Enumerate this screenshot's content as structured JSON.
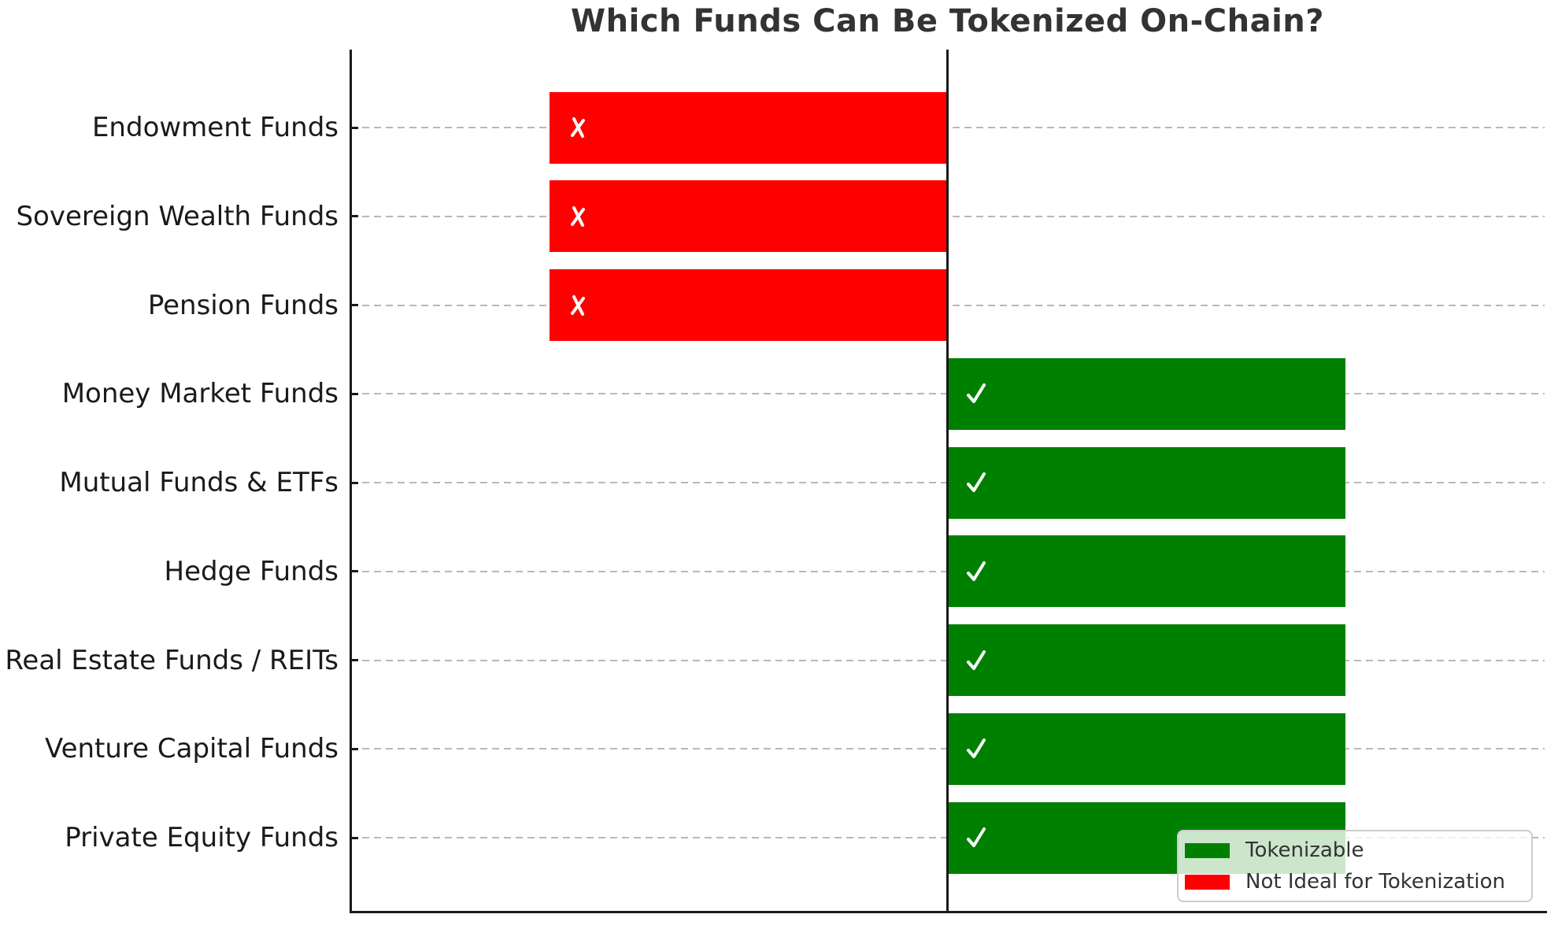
{
  "title": "Which Funds Can Be Tokenized On-Chain?",
  "chart_data": {
    "type": "bar",
    "orientation": "horizontal",
    "diverging": true,
    "title": "Which Funds Can Be Tokenized On-Chain?",
    "xlabel": "",
    "ylabel": "",
    "xlim": [
      -1.5,
      1.5
    ],
    "grid": "horizontal dashed gridline at each category",
    "legend_position": "lower right",
    "center_line_x": 0,
    "categories": [
      "Endowment Funds",
      "Sovereign Wealth Funds",
      "Pension Funds",
      "Money Market Funds",
      "Mutual Funds & ETFs",
      "Hedge Funds",
      "Real Estate Funds / REITs",
      "Venture Capital Funds",
      "Private Equity Funds"
    ],
    "values": [
      -1,
      -1,
      -1,
      1,
      1,
      1,
      1,
      1,
      1
    ],
    "rows": [
      {
        "label": "Endowment Funds",
        "value": -1,
        "status": "not_ideal",
        "marker": "✗",
        "color": "#ff0000"
      },
      {
        "label": "Sovereign Wealth Funds",
        "value": -1,
        "status": "not_ideal",
        "marker": "✗",
        "color": "#ff0000"
      },
      {
        "label": "Pension Funds",
        "value": -1,
        "status": "not_ideal",
        "marker": "✗",
        "color": "#ff0000"
      },
      {
        "label": "Money Market Funds",
        "value": 1,
        "status": "tokenizable",
        "marker": "✓",
        "color": "#008000"
      },
      {
        "label": "Mutual Funds & ETFs",
        "value": 1,
        "status": "tokenizable",
        "marker": "✓",
        "color": "#008000"
      },
      {
        "label": "Hedge Funds",
        "value": 1,
        "status": "tokenizable",
        "marker": "✓",
        "color": "#008000"
      },
      {
        "label": "Real Estate Funds / REITs",
        "value": 1,
        "status": "tokenizable",
        "marker": "✓",
        "color": "#008000"
      },
      {
        "label": "Venture Capital Funds",
        "value": 1,
        "status": "tokenizable",
        "marker": "✓",
        "color": "#008000"
      },
      {
        "label": "Private Equity Funds",
        "value": 1,
        "status": "tokenizable",
        "marker": "✓",
        "color": "#008000"
      }
    ],
    "series": [
      {
        "name": "Tokenizable",
        "color": "#008000",
        "marker": "✓"
      },
      {
        "name": "Not Ideal for Tokenization",
        "color": "#ff0000",
        "marker": "✗"
      }
    ]
  },
  "legend": {
    "items": [
      {
        "label": "Tokenizable",
        "color": "#008000"
      },
      {
        "label": "Not Ideal for Tokenization",
        "color": "#ff0000"
      }
    ]
  },
  "colors": {
    "tokenizable": "#008000",
    "not_ideal": "#ff0000",
    "title_text": "#333333",
    "label_text": "#1a1a1a",
    "gridline": "#b8b8b8",
    "legend_border": "#cccccc",
    "mark": "#ffffff"
  }
}
